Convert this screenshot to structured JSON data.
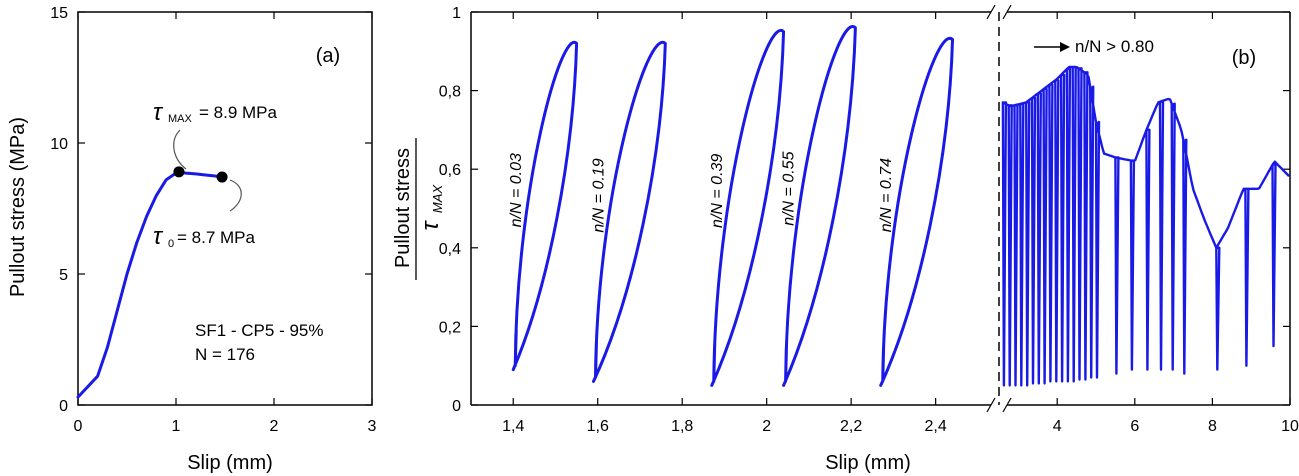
{
  "chart_data": [
    {
      "panel": "(a)",
      "type": "line",
      "xlabel": "Slip (mm)",
      "ylabel": "Pullout stress (MPa)",
      "xlim": [
        0,
        3
      ],
      "ylim": [
        0,
        15
      ],
      "xticks": [
        "0",
        "1",
        "2",
        "3"
      ],
      "yticks": [
        "0",
        "5",
        "10",
        "15"
      ],
      "series": [
        {
          "x": [
            0,
            0.05,
            0.1,
            0.2,
            0.3,
            0.4,
            0.5,
            0.6,
            0.7,
            0.8,
            0.9,
            1.0,
            1.03,
            1.1,
            1.2,
            1.3,
            1.4,
            1.47
          ],
          "y": [
            0.3,
            0.5,
            0.7,
            1.1,
            2.2,
            3.6,
            5.0,
            6.2,
            7.2,
            8.0,
            8.6,
            8.85,
            8.9,
            8.85,
            8.82,
            8.78,
            8.74,
            8.7
          ]
        }
      ],
      "points": [
        {
          "x": 1.03,
          "y": 8.9
        },
        {
          "x": 1.47,
          "y": 8.7
        }
      ],
      "annotations": {
        "tau_max_sym": "τ",
        "tau_max_sub": "MAX",
        "tau_max_val": "= 8.9 MPa",
        "tau0_sym": "τ",
        "tau0_sub": "0",
        "tau0_val": "= 8.7 MPa",
        "specimen": "SF1 - CP5 - 95%",
        "cycles": "N = 176"
      }
    },
    {
      "panel": "(b)",
      "type": "line",
      "xlabel": "Slip (mm)",
      "ylabel_top": "Pullout stress",
      "ylabel_bottom_sym": "τ",
      "ylabel_bottom_sub": "MAX",
      "ylim": [
        0,
        1
      ],
      "yticks": [
        "0",
        "0,2",
        "0,4",
        "0,6",
        "0,8",
        "1"
      ],
      "left_xlim": [
        1.3,
        2.55
      ],
      "left_xticks": [
        "1,4",
        "1,6",
        "1,8",
        "2",
        "2,2",
        "2,4"
      ],
      "right_xlim": [
        2.5,
        10
      ],
      "right_xticks": [
        "4",
        "6",
        "8",
        "10"
      ],
      "loops": [
        {
          "label": "n/N = 0.03",
          "x_start": 1.4,
          "y_start": 0.09,
          "x_peak": 1.55,
          "y_peak": 0.92
        },
        {
          "label": "n/N = 0.19",
          "x_start": 1.59,
          "y_start": 0.06,
          "x_peak": 1.76,
          "y_peak": 0.92
        },
        {
          "label": "n/N = 0.39",
          "x_start": 1.87,
          "y_start": 0.05,
          "x_peak": 2.04,
          "y_peak": 0.95
        },
        {
          "label": "n/N = 0.55",
          "x_start": 2.04,
          "y_start": 0.05,
          "x_peak": 2.21,
          "y_peak": 0.96
        },
        {
          "label": "n/N = 0.74",
          "x_start": 2.27,
          "y_start": 0.05,
          "x_peak": 2.44,
          "y_peak": 0.93
        }
      ],
      "post_envelope": {
        "x": [
          2.6,
          2.8,
          3.2,
          3.6,
          4.0,
          4.3,
          4.5,
          4.8,
          5.0,
          5.2,
          5.5,
          6.0,
          6.3,
          6.6,
          6.9,
          7.2,
          7.5,
          7.8,
          8.1,
          8.4,
          8.8,
          9.2,
          9.6,
          10.0
        ],
        "y": [
          0.77,
          0.76,
          0.77,
          0.8,
          0.83,
          0.86,
          0.86,
          0.84,
          0.72,
          0.64,
          0.63,
          0.62,
          0.7,
          0.77,
          0.78,
          0.7,
          0.55,
          0.47,
          0.4,
          0.45,
          0.55,
          0.55,
          0.62,
          0.58
        ]
      },
      "post_dips": {
        "x": [
          2.6,
          2.75,
          2.9,
          3.05,
          3.2,
          3.35,
          3.5,
          3.65,
          3.8,
          3.95,
          4.1,
          4.25,
          4.4,
          4.55,
          4.7,
          4.85,
          5.0,
          5.5,
          5.9,
          6.3,
          6.65,
          6.95,
          7.25,
          8.1,
          8.85,
          9.55
        ],
        "y": [
          0.05,
          0.05,
          0.05,
          0.05,
          0.05,
          0.055,
          0.055,
          0.055,
          0.06,
          0.06,
          0.06,
          0.06,
          0.06,
          0.065,
          0.065,
          0.07,
          0.07,
          0.08,
          0.09,
          0.09,
          0.09,
          0.09,
          0.08,
          0.09,
          0.1,
          0.15
        ]
      },
      "annotations": {
        "arrow_label": "n/N > 0.80"
      }
    }
  ]
}
